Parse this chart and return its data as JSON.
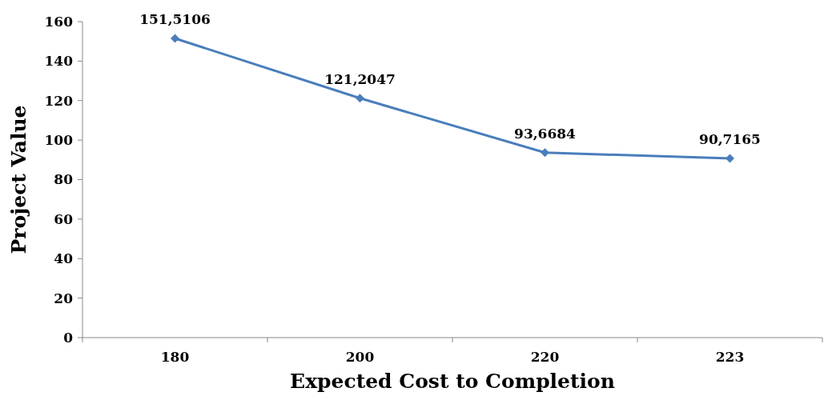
{
  "chart_data": {
    "type": "line",
    "xlabel": "Expected Cost to Completion",
    "ylabel": "Project Value",
    "categories": [
      "180",
      "200",
      "220",
      "223"
    ],
    "series": [
      {
        "color": "#4a7ebb",
        "values": [
          151.5106,
          121.2047,
          93.6684,
          90.7165
        ],
        "value_labels": [
          "151,5106",
          "121,2047",
          "93,6684",
          "90,7165"
        ]
      }
    ],
    "ylim": [
      0,
      160
    ],
    "yticks": [
      0,
      20,
      40,
      60,
      80,
      100,
      120,
      140,
      160
    ],
    "marker": "diamond",
    "line_style": "solid",
    "grid": false
  }
}
